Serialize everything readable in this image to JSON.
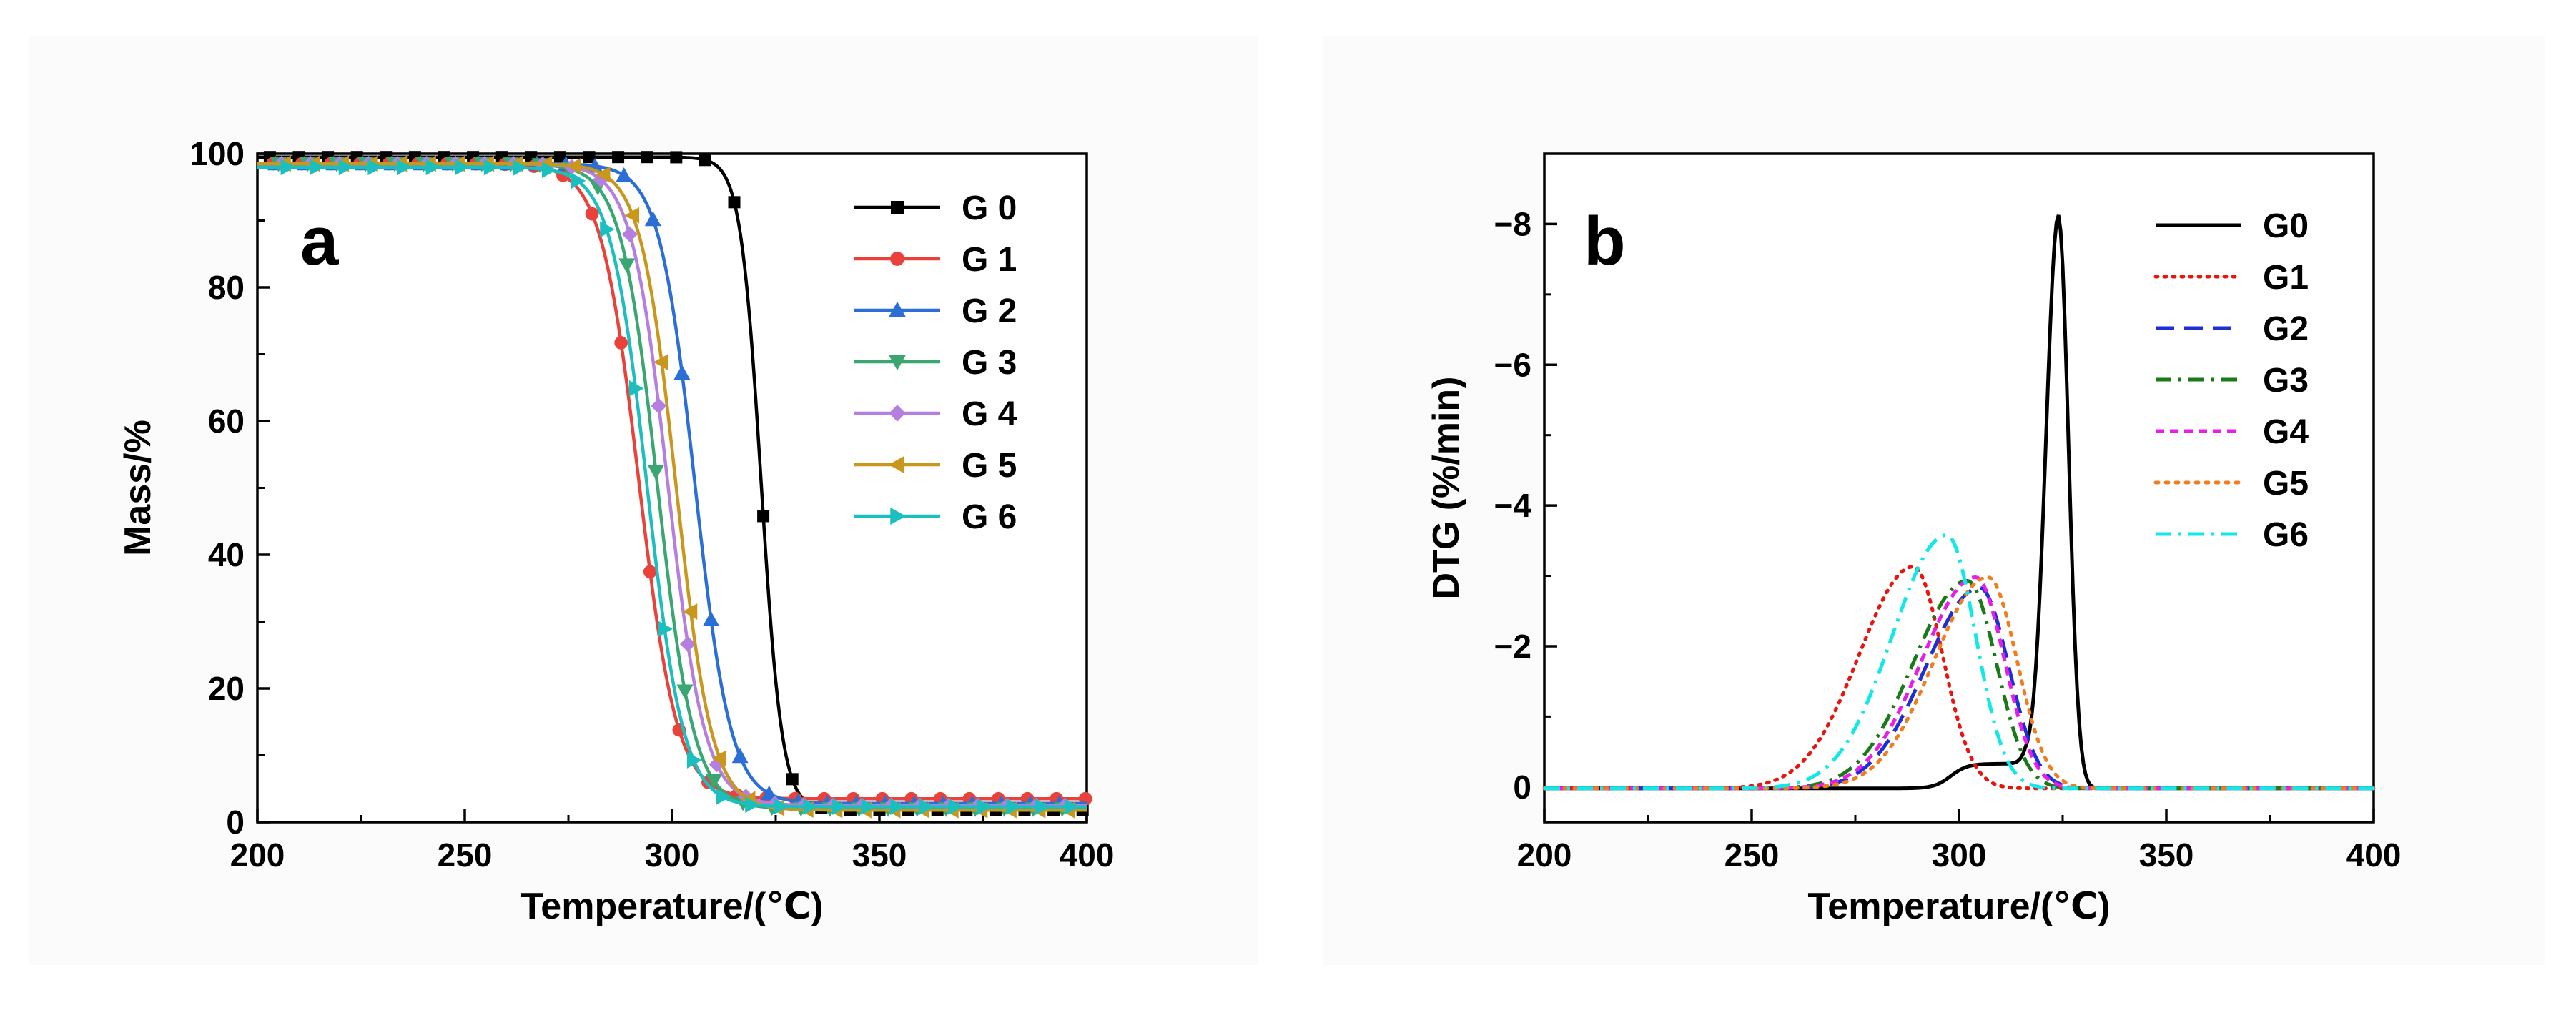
{
  "chart_data": [
    {
      "type": "line",
      "panel_label": "a",
      "xlabel": "Temperature/(℃)",
      "ylabel": "Mass/%",
      "xlim": [
        200,
        400
      ],
      "ylim": [
        0,
        100
      ],
      "xticks": [
        200,
        250,
        300,
        350,
        400
      ],
      "yticks": [
        0,
        20,
        40,
        60,
        80,
        100
      ],
      "xtick_labels": [
        "200",
        "250",
        "300",
        "350",
        "400"
      ],
      "ytick_labels": [
        "0",
        "20",
        "40",
        "60",
        "80",
        "100"
      ],
      "legend_position": "top-right",
      "series": [
        {
          "name": "G 0",
          "color": "#000000",
          "marker": "square",
          "midpoint": 321.5,
          "width": 2.5,
          "start": 99.5,
          "end": 1.8
        },
        {
          "name": "G 1",
          "color": "#e8423b",
          "marker": "circle",
          "midpoint": 292.0,
          "width": 4.6,
          "start": 98.5,
          "end": 3.5
        },
        {
          "name": "G 2",
          "color": "#2b6fd6",
          "marker": "triangle-up",
          "midpoint": 305.5,
          "width": 4.3,
          "start": 98.5,
          "end": 2.8
        },
        {
          "name": "G 3",
          "color": "#3aa772",
          "marker": "triangle-down",
          "midpoint": 296.5,
          "width": 4.4,
          "start": 98.5,
          "end": 2.0
        },
        {
          "name": "G 4",
          "color": "#b57fe0",
          "marker": "diamond",
          "midpoint": 299.0,
          "width": 4.4,
          "start": 98.5,
          "end": 2.5
        },
        {
          "name": "G 5",
          "color": "#c9971b",
          "marker": "triangle-left",
          "midpoint": 301.0,
          "width": 4.3,
          "start": 98.5,
          "end": 1.8
        },
        {
          "name": "G 6",
          "color": "#1bbfbf",
          "marker": "triangle-right",
          "midpoint": 294.0,
          "width": 4.4,
          "start": 98.0,
          "end": 2.3
        }
      ]
    },
    {
      "type": "line",
      "panel_label": "b",
      "xlabel": "Temperature/(℃)",
      "ylabel": "DTG (%/min)",
      "xlim": [
        200,
        400
      ],
      "ylim": [
        0.5,
        -9.0
      ],
      "xticks": [
        200,
        250,
        300,
        350,
        400
      ],
      "yticks": [
        0,
        -2,
        -4,
        -6,
        -8
      ],
      "xtick_labels": [
        "200",
        "250",
        "300",
        "350",
        "400"
      ],
      "ytick_labels": [
        "0",
        "−2",
        "−4",
        "−6",
        "−8"
      ],
      "legend_position": "top-right",
      "series": [
        {
          "name": "G0",
          "color": "#000000",
          "dash": "solid",
          "peak_x": 324,
          "peak_y": -8.1
        },
        {
          "name": "G1",
          "color": "#e8140e",
          "dash": "dotted",
          "peak_x": 289,
          "peak_y": -3.15
        },
        {
          "name": "G2",
          "color": "#1d2fd6",
          "dash": "dashed",
          "peak_x": 305,
          "peak_y": -2.85
        },
        {
          "name": "G3",
          "color": "#1a7a1a",
          "dash": "dashdot",
          "peak_x": 302,
          "peak_y": -2.95
        },
        {
          "name": "G4",
          "color": "#e81ee8",
          "dash": "shortdash",
          "peak_x": 304,
          "peak_y": -3.0
        },
        {
          "name": "G5",
          "color": "#f07d1e",
          "dash": "shortdot",
          "peak_x": 307,
          "peak_y": -3.0
        },
        {
          "name": "G6",
          "color": "#13e8e8",
          "dash": "dashdot",
          "peak_x": 297,
          "peak_y": -3.6
        }
      ]
    }
  ]
}
